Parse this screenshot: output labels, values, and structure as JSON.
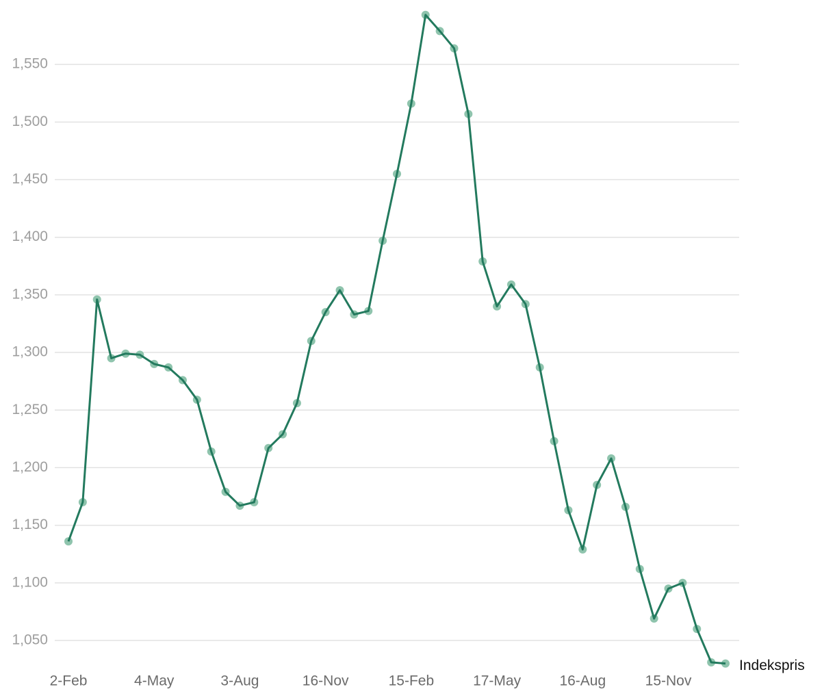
{
  "chart_data": {
    "type": "line",
    "categories": [
      "2-Feb",
      null,
      null,
      null,
      null,
      null,
      "4-May",
      null,
      null,
      null,
      null,
      null,
      "3-Aug",
      null,
      null,
      null,
      null,
      null,
      "16-Nov",
      null,
      null,
      null,
      null,
      null,
      "15-Feb",
      null,
      null,
      null,
      null,
      null,
      "17-May",
      null,
      null,
      null,
      null,
      null,
      "16-Aug",
      null,
      null,
      null,
      null,
      null,
      "15-Nov",
      null,
      null,
      null,
      null
    ],
    "series": [
      {
        "name": "Indekspris",
        "color": "#237a5e",
        "marker_color": "#8fc4ad",
        "values": [
          1136,
          1170,
          1346,
          1295,
          1299,
          1298,
          1290,
          1287,
          1276,
          1259,
          1214,
          1179,
          1167,
          1170,
          1217,
          1229,
          1256,
          1310,
          1335,
          1354,
          1333,
          1336,
          1397,
          1455,
          1516,
          1593,
          1579,
          1564,
          1507,
          1379,
          1340,
          1359,
          1342,
          1287,
          1223,
          1163,
          1129,
          1185,
          1208,
          1166,
          1112,
          1069,
          1095,
          1100,
          1060,
          1031,
          1030
        ]
      }
    ],
    "ylim": [
      1025,
      1600
    ],
    "yticks": [
      {
        "value": 1050,
        "label": "1,050"
      },
      {
        "value": 1100,
        "label": "1,100"
      },
      {
        "value": 1150,
        "label": "1,150"
      },
      {
        "value": 1200,
        "label": "1,200"
      },
      {
        "value": 1250,
        "label": "1,250"
      },
      {
        "value": 1300,
        "label": "1,300"
      },
      {
        "value": 1350,
        "label": "1,350"
      },
      {
        "value": 1400,
        "label": "1,400"
      },
      {
        "value": 1450,
        "label": "1,450"
      },
      {
        "value": 1500,
        "label": "1,500"
      },
      {
        "value": 1550,
        "label": "1,550"
      }
    ],
    "grid": true
  }
}
